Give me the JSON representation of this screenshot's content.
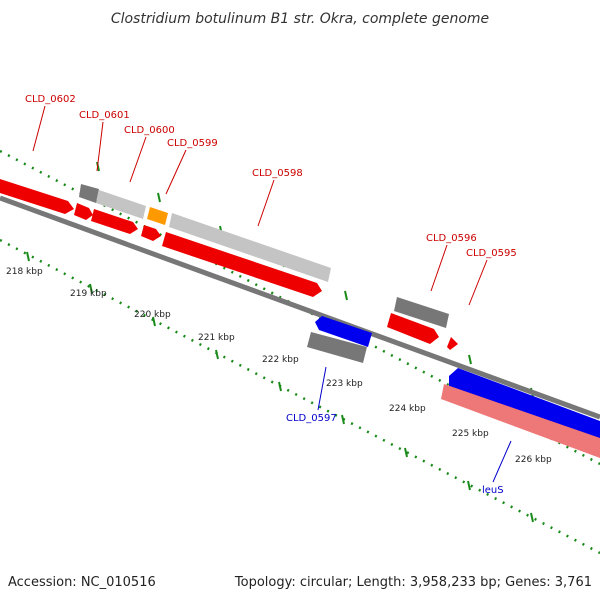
{
  "title": "Clostridium botulinum B1 str. Okra, complete genome",
  "footer": {
    "accession": "Accession: NC_010516",
    "topology": "Topology: circular; Length: 3,958,233 bp; Genes: 3,761"
  },
  "colors": {
    "forward_cds": "#ee0000",
    "reverse_cds": "#0000ee",
    "other_gene": "#777777",
    "light_gene": "#c4c4c4",
    "orange_gene": "#ff9900",
    "rrna": "#ee7777",
    "axis": "#777777",
    "tick": "#1a8a1a",
    "label_red": "#cc0000",
    "label_blue": "#0000cc"
  },
  "kbp_labels": [
    "218 kbp",
    "219 kbp",
    "220 kbp",
    "221 kbp",
    "222 kbp",
    "223 kbp",
    "224 kbp",
    "225 kbp",
    "226 kbp"
  ],
  "gene_labels": [
    "CLD_0602",
    "CLD_0601",
    "CLD_0600",
    "CLD_0599",
    "CLD_0598",
    "CLD_0596",
    "CLD_0595",
    "CLD_0597",
    "leuS"
  ]
}
